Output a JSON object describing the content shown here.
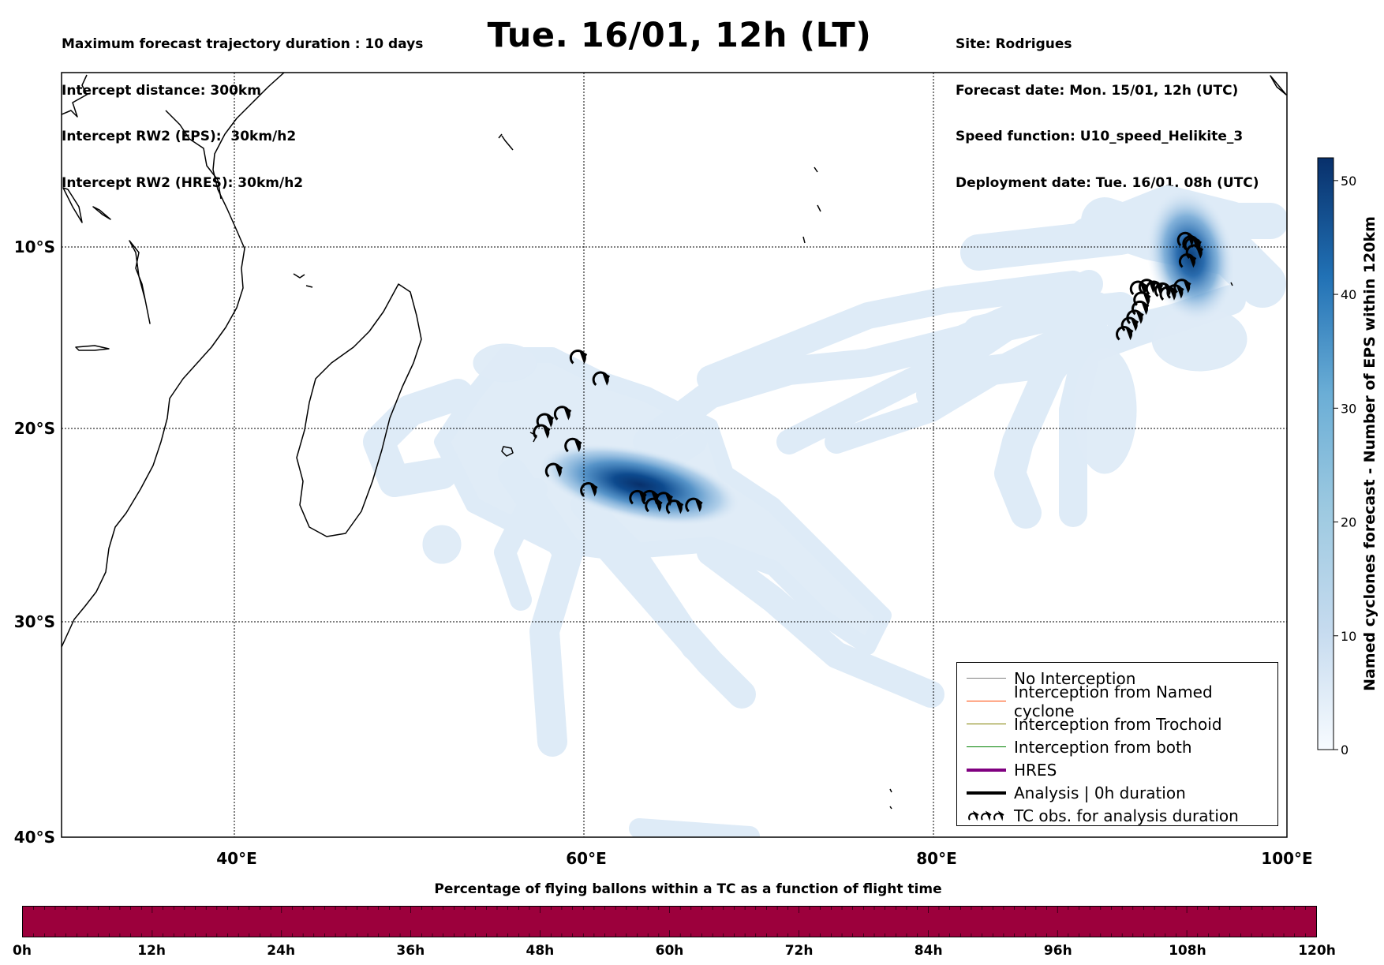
{
  "header": {
    "left_lines": [
      "Maximum forecast trajectory duration : 10 days",
      "Intercept distance: 300km",
      "Intercept RW2 (EPS):  30km/h2",
      "Intercept RW2 (HRES): 30km/h2"
    ],
    "title": "Tue. 16/01, 12h (LT)",
    "right_lines": [
      "Site: Rodrigues",
      "Forecast date: Mon. 15/01, 12h (UTC)",
      "Speed function: U10_speed_Helikite_3",
      "Deployment date: Tue. 16/01, 08h (UTC)"
    ]
  },
  "map": {
    "lon_range": [
      30,
      100
    ],
    "lat_range": [
      -40,
      0
    ],
    "lon_ticks": [
      "40°E",
      "60°E",
      "80°E",
      "100°E"
    ],
    "lat_ticks": [
      "10°S",
      "20°S",
      "30°S",
      "40°S"
    ],
    "density_color_low": "#dce9f6",
    "density_color_high": "#0b3f7a",
    "hotspots": [
      {
        "lon": 63,
        "lat": -22.9,
        "intensity": 52
      },
      {
        "lon": 94.5,
        "lat": -10.5,
        "intensity": 45
      }
    ],
    "tc_obs": [
      {
        "lon": 59.5,
        "lat": -16.1
      },
      {
        "lon": 60.8,
        "lat": -17.3
      },
      {
        "lon": 57.6,
        "lat": -19.6
      },
      {
        "lon": 57.4,
        "lat": -20.2
      },
      {
        "lon": 58.6,
        "lat": -19.2
      },
      {
        "lon": 59.2,
        "lat": -20.9
      },
      {
        "lon": 58.1,
        "lat": -22.2
      },
      {
        "lon": 60.1,
        "lat": -23.2
      },
      {
        "lon": 62.9,
        "lat": -23.6
      },
      {
        "lon": 63.6,
        "lat": -23.6
      },
      {
        "lon": 64.4,
        "lat": -23.7
      },
      {
        "lon": 63.8,
        "lat": -24.0
      },
      {
        "lon": 65.0,
        "lat": -24.1
      },
      {
        "lon": 66.1,
        "lat": -24.0
      },
      {
        "lon": 90.7,
        "lat": -14.8
      },
      {
        "lon": 91.0,
        "lat": -14.3
      },
      {
        "lon": 91.3,
        "lat": -13.9
      },
      {
        "lon": 91.6,
        "lat": -13.4
      },
      {
        "lon": 91.7,
        "lat": -12.9
      },
      {
        "lon": 91.5,
        "lat": -12.3
      },
      {
        "lon": 92.0,
        "lat": -12.2
      },
      {
        "lon": 92.4,
        "lat": -12.3
      },
      {
        "lon": 92.9,
        "lat": -12.4
      },
      {
        "lon": 93.2,
        "lat": -12.6
      },
      {
        "lon": 93.6,
        "lat": -12.5
      },
      {
        "lon": 94.0,
        "lat": -12.2
      },
      {
        "lon": 94.3,
        "lat": -10.8
      },
      {
        "lon": 94.7,
        "lat": -10.3
      },
      {
        "lon": 94.6,
        "lat": -9.9
      },
      {
        "lon": 94.2,
        "lat": -9.6
      },
      {
        "lon": 94.5,
        "lat": -9.8
      }
    ]
  },
  "colorbar": {
    "label": "Named cyclones forecast - Number of EPS within 120km",
    "min": 0,
    "max": 52,
    "ticks": [
      "0",
      "10",
      "20",
      "30",
      "40",
      "50"
    ]
  },
  "legend": [
    {
      "label": "No Interception",
      "color": "#808080",
      "style": "thin"
    },
    {
      "label": "Interception from Named cyclone",
      "color": "#ff4500",
      "style": "thin"
    },
    {
      "label": "Interception from Trochoid",
      "color": "#808000",
      "style": "thin"
    },
    {
      "label": "Interception from both",
      "color": "#008000",
      "style": "thin"
    },
    {
      "label": "HRES",
      "color": "#800080",
      "style": "thick"
    },
    {
      "label": "Analysis | 0h duration",
      "color": "#000000",
      "style": "thick"
    },
    {
      "label": "TC obs. for analysis duration",
      "color": "#000000",
      "style": "symbol"
    }
  ],
  "legend_symbol": "ʛʛʛ",
  "flight_time": {
    "title": "Percentage of flying ballons within a TC as a function of flight time",
    "ticks": [
      "0h",
      "12h",
      "24h",
      "36h",
      "48h",
      "60h",
      "72h",
      "84h",
      "96h",
      "108h",
      "120h"
    ],
    "bar_color": "#9c003c"
  }
}
